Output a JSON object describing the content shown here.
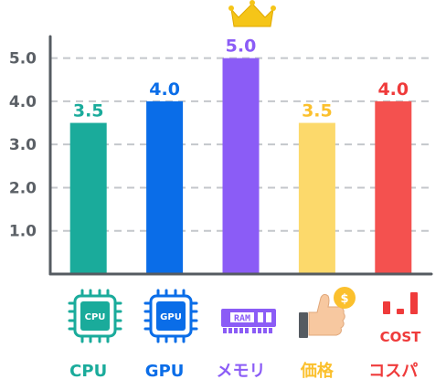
{
  "chart_data": {
    "type": "bar",
    "categories": [
      "CPU",
      "GPU",
      "メモリ",
      "価格",
      "コスパ"
    ],
    "values": [
      3.5,
      4.0,
      5.0,
      3.5,
      4.0
    ],
    "value_labels": [
      "3.5",
      "4.0",
      "5.0",
      "3.5",
      "4.0"
    ],
    "colors": [
      "#1aab9b",
      "#0a6de8",
      "#8b5cf6",
      "#fcd96b",
      "#f4514f"
    ],
    "category_label_colors": [
      "#1aab9b",
      "#0a6de8",
      "#8b5cf6",
      "#fbc02d",
      "#ef3b3b"
    ],
    "value_label_colors": [
      "#1aab9b",
      "#0a6de8",
      "#8b5cf6",
      "#fbc02d",
      "#ef3b3b"
    ],
    "yticks": [
      "1.0",
      "2.0",
      "3.0",
      "4.0",
      "5.0"
    ],
    "ylim": [
      0,
      5.5
    ],
    "grid": "horizontal dashed",
    "highlight": {
      "category": "メモリ",
      "icon": "crown-icon",
      "color": "#f5c518"
    },
    "category_icons": [
      "cpu-chip-icon",
      "gpu-chip-icon",
      "ram-module-icon",
      "price-thumbs-up-coin-icon",
      "cost-bar-chart-icon"
    ],
    "icon_texts": {
      "cpu": "CPU",
      "gpu": "GPU",
      "ram": "RAM",
      "cost": "COST",
      "coin": "$"
    }
  }
}
